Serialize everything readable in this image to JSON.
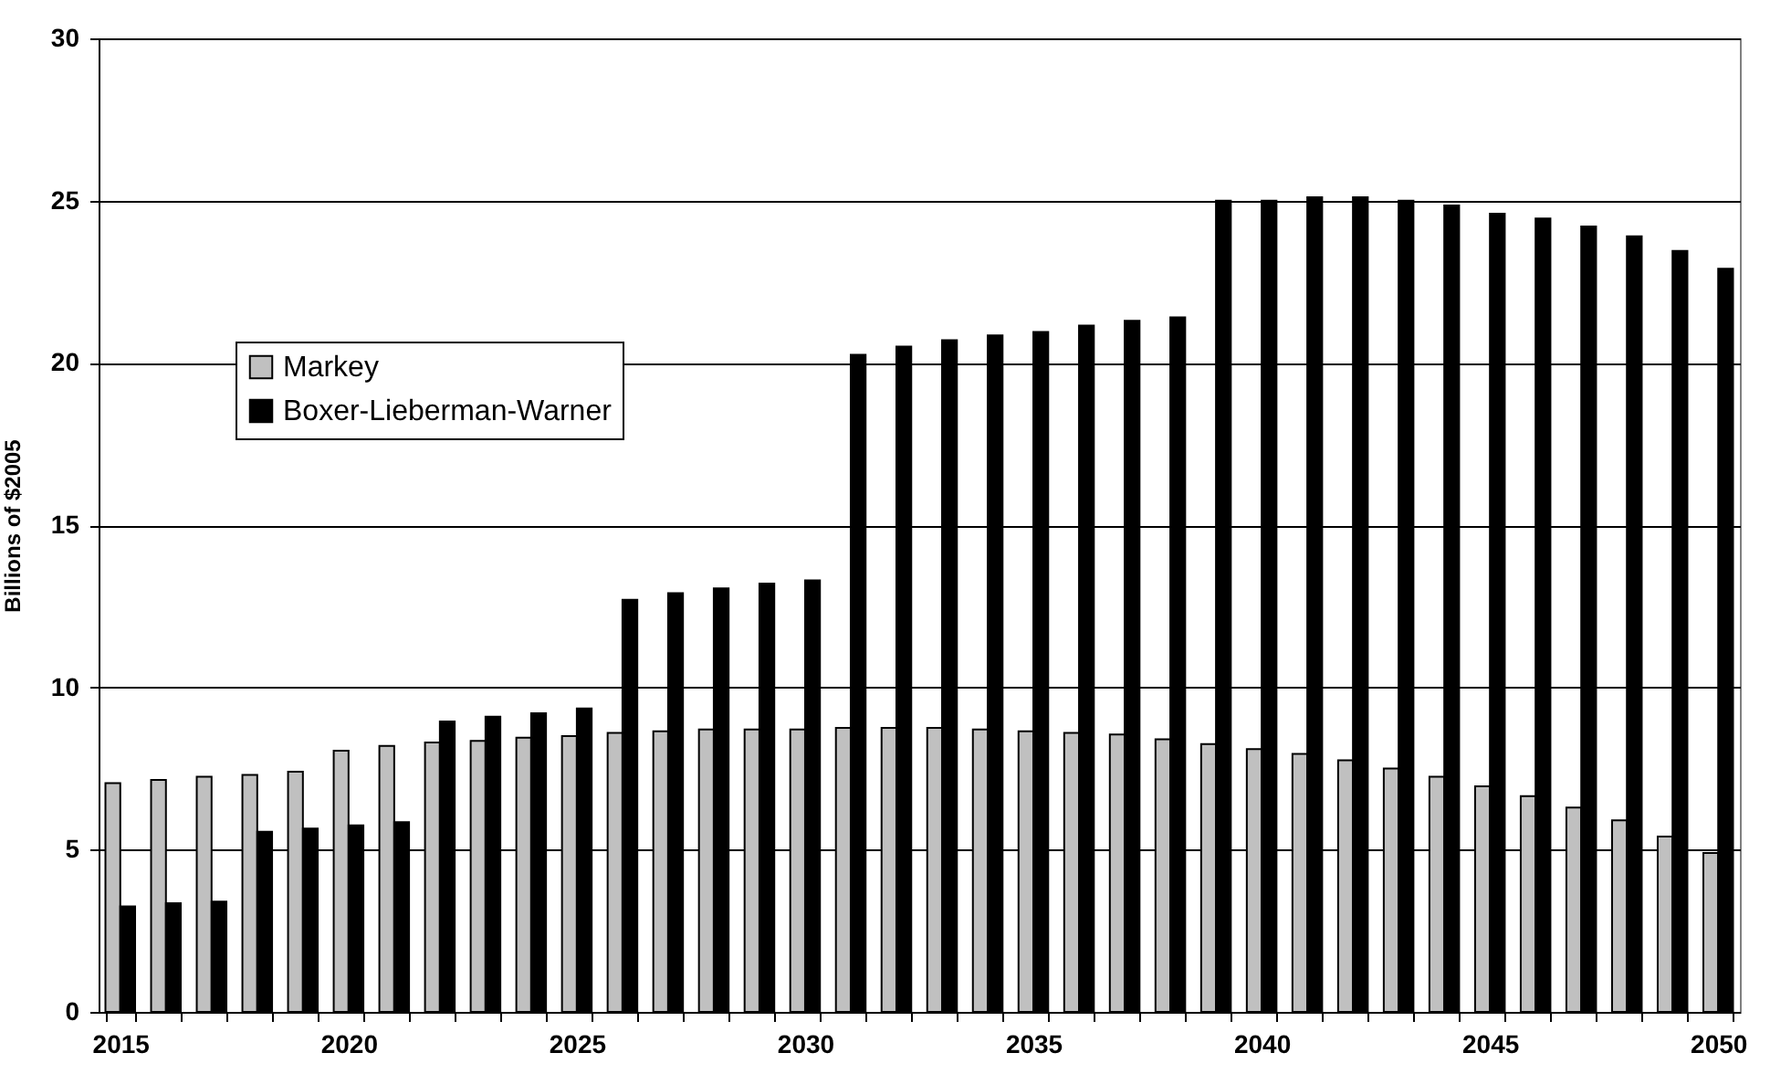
{
  "chart_data": {
    "type": "bar",
    "ylabel": "Billions of $2005",
    "categories": [
      "2015",
      null,
      null,
      null,
      null,
      "2020",
      null,
      null,
      null,
      null,
      "2025",
      null,
      null,
      null,
      null,
      "2030",
      null,
      null,
      null,
      null,
      "2035",
      null,
      null,
      null,
      null,
      "2040",
      null,
      null,
      null,
      null,
      "2045",
      null,
      null,
      null,
      null,
      "2050"
    ],
    "series": [
      {
        "name": "Markey",
        "color": "#c0c0c0",
        "values": [
          7.05,
          7.15,
          7.25,
          7.3,
          7.4,
          8.05,
          8.2,
          8.3,
          8.35,
          8.45,
          8.5,
          8.6,
          8.65,
          8.7,
          8.7,
          8.7,
          8.75,
          8.75,
          8.75,
          8.7,
          8.65,
          8.6,
          8.55,
          8.4,
          8.25,
          8.1,
          7.95,
          7.75,
          7.5,
          7.25,
          6.95,
          6.65,
          6.3,
          5.9,
          5.4,
          4.9
        ]
      },
      {
        "name": "Boxer-Lieberman-Warner",
        "color": "#000000",
        "values": [
          3.25,
          3.35,
          3.4,
          5.55,
          5.65,
          5.75,
          5.85,
          8.95,
          9.1,
          9.2,
          9.35,
          12.7,
          12.9,
          13.05,
          13.2,
          13.3,
          20.25,
          20.5,
          20.7,
          20.85,
          20.95,
          21.15,
          21.3,
          21.4,
          25.0,
          25.0,
          25.1,
          25.1,
          25.0,
          24.85,
          24.6,
          24.45,
          24.2,
          23.9,
          23.45,
          22.9
        ]
      }
    ],
    "ylim": [
      0,
      30
    ],
    "yticks": [
      0,
      5,
      10,
      15,
      20,
      25,
      30
    ],
    "grid": "y",
    "legend": "left"
  }
}
